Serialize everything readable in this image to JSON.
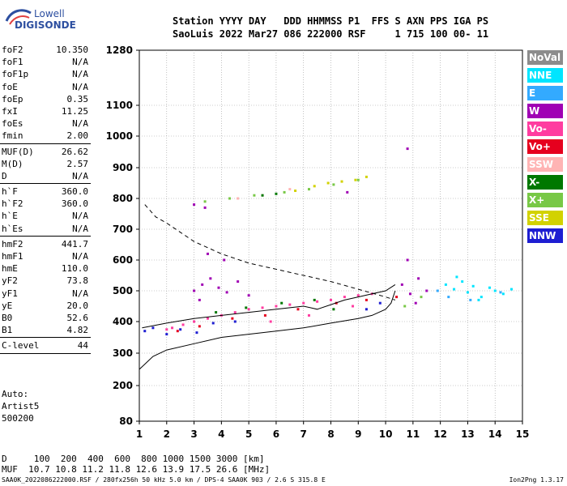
{
  "logo": {
    "line1": "Lowell",
    "line2": "DIGISONDE"
  },
  "header": {
    "line1": "Station YYYY DAY   DDD HHMMSS P1  FFS S AXN PPS IGA PS",
    "line2": "SaoLuis 2022 Mar27 086 222000 RSF     1 715 100 00- 11"
  },
  "params": [
    {
      "k": "foF2",
      "v": "10.350"
    },
    {
      "k": "foF1",
      "v": "N/A"
    },
    {
      "k": "foF1p",
      "v": "N/A"
    },
    {
      "k": "foE",
      "v": "N/A"
    },
    {
      "k": "foEp",
      "v": "0.35"
    },
    {
      "k": "fxI",
      "v": "11.25"
    },
    {
      "k": "foEs",
      "v": "N/A"
    },
    {
      "k": "fmin",
      "v": "2.00"
    },
    {
      "k": "MUF(D)",
      "v": "26.62"
    },
    {
      "k": "M(D)",
      "v": "2.57"
    },
    {
      "k": "D",
      "v": "N/A"
    },
    {
      "k": "h`F",
      "v": "360.0"
    },
    {
      "k": "h`F2",
      "v": "360.0"
    },
    {
      "k": "h`E",
      "v": "N/A"
    },
    {
      "k": "h`Es",
      "v": "N/A"
    },
    {
      "k": "hmF2",
      "v": "441.7"
    },
    {
      "k": "hmF1",
      "v": "N/A"
    },
    {
      "k": "hmE",
      "v": "110.0"
    },
    {
      "k": "yF2",
      "v": "73.8"
    },
    {
      "k": "yF1",
      "v": "N/A"
    },
    {
      "k": "yE",
      "v": "20.0"
    },
    {
      "k": "B0",
      "v": "52.6"
    },
    {
      "k": "B1",
      "v": "4.82"
    },
    {
      "k": "C-level",
      "v": "44"
    }
  ],
  "auto": {
    "line1": "Auto:",
    "line2": "Artist5",
    "line3": "500200"
  },
  "legend": [
    {
      "label": "NoVal",
      "color": "#8c8c8c"
    },
    {
      "label": "NNE",
      "color": "#00e5ff"
    },
    {
      "label": "E",
      "color": "#33aaff"
    },
    {
      "label": "W",
      "color": "#a000b4"
    },
    {
      "label": "Vo-",
      "color": "#ff3ca0"
    },
    {
      "label": "Vo+",
      "color": "#e6001e"
    },
    {
      "label": "SSW",
      "color": "#ffb4b4"
    },
    {
      "label": "X-",
      "color": "#007800"
    },
    {
      "label": "X+",
      "color": "#78c846"
    },
    {
      "label": "SSE",
      "color": "#d2d200"
    },
    {
      "label": "NNW",
      "color": "#1e1ed2"
    }
  ],
  "bottom": {
    "line1": "D     100  200  400  600  800 1000 1500 3000 [km]",
    "line2": "MUF  10.7 10.8 11.2 11.8 12.6 13.9 17.5 26.6 [MHz]"
  },
  "footer": "SAA0K_2022086222000.RSF / 280fx256h 50 kHz 5.0 km / DPS-4 SAA0K 903 / 2.6 S 315.8 E",
  "version": "Ion2Png 1.3.17",
  "chart_data": {
    "type": "scatter",
    "xlim": [
      1,
      15
    ],
    "x_ticks": [
      1,
      2,
      3,
      4,
      5,
      6,
      7,
      8,
      9,
      10,
      11,
      12,
      13,
      14,
      15
    ],
    "y_ticks": [
      80,
      200,
      300,
      400,
      500,
      600,
      700,
      800,
      900,
      1000,
      1100,
      1280
    ],
    "y_scale": "quasi-log",
    "grid": true,
    "legend_position": "right",
    "series": [
      {
        "name": "NoVal",
        "points": []
      },
      {
        "name": "NNE",
        "points": [
          [
            12.2,
            520
          ],
          [
            12.5,
            505
          ],
          [
            12.8,
            530
          ],
          [
            13.0,
            495
          ],
          [
            13.2,
            515
          ],
          [
            13.5,
            480
          ],
          [
            13.8,
            510
          ],
          [
            14.0,
            500
          ],
          [
            14.3,
            490
          ],
          [
            12.6,
            545
          ],
          [
            13.4,
            470
          ],
          [
            14.6,
            505
          ]
        ]
      },
      {
        "name": "E",
        "points": [
          [
            12.3,
            480
          ],
          [
            13.1,
            470
          ],
          [
            14.2,
            495
          ],
          [
            11.9,
            500
          ]
        ]
      },
      {
        "name": "W",
        "points": [
          [
            3.0,
            500
          ],
          [
            3.3,
            520
          ],
          [
            3.6,
            540
          ],
          [
            3.9,
            510
          ],
          [
            4.2,
            495
          ],
          [
            4.6,
            530
          ],
          [
            5.0,
            485
          ],
          [
            3.5,
            620
          ],
          [
            4.1,
            600
          ],
          [
            3.2,
            470
          ],
          [
            10.6,
            520
          ],
          [
            10.9,
            490
          ],
          [
            11.2,
            540
          ],
          [
            11.5,
            500
          ],
          [
            10.8,
            600
          ],
          [
            11.1,
            460
          ],
          [
            3.0,
            780
          ],
          [
            3.4,
            770
          ],
          [
            8.6,
            820
          ],
          [
            10.8,
            960
          ]
        ]
      },
      {
        "name": "Vo-",
        "points": [
          [
            2.2,
            380
          ],
          [
            2.6,
            390
          ],
          [
            3.0,
            400
          ],
          [
            3.5,
            410
          ],
          [
            4.0,
            420
          ],
          [
            4.5,
            430
          ],
          [
            5.0,
            440
          ],
          [
            5.5,
            445
          ],
          [
            6.0,
            450
          ],
          [
            6.5,
            455
          ],
          [
            7.0,
            460
          ],
          [
            7.5,
            465
          ],
          [
            8.0,
            470
          ],
          [
            8.5,
            480
          ],
          [
            9.0,
            485
          ],
          [
            9.5,
            490
          ],
          [
            2.0,
            375
          ],
          [
            5.8,
            400
          ],
          [
            7.2,
            420
          ],
          [
            8.8,
            450
          ]
        ]
      },
      {
        "name": "Vo+",
        "points": [
          [
            2.4,
            370
          ],
          [
            3.2,
            385
          ],
          [
            4.4,
            410
          ],
          [
            5.6,
            420
          ],
          [
            6.8,
            440
          ],
          [
            8.2,
            460
          ],
          [
            9.3,
            470
          ],
          [
            10.4,
            480
          ]
        ]
      },
      {
        "name": "SSW",
        "points": [
          [
            4.6,
            800
          ],
          [
            5.5,
            810
          ],
          [
            6.5,
            830
          ]
        ]
      },
      {
        "name": "X-",
        "points": [
          [
            3.8,
            430
          ],
          [
            4.9,
            445
          ],
          [
            6.2,
            460
          ],
          [
            7.4,
            470
          ],
          [
            8.1,
            440
          ],
          [
            5.5,
            810
          ],
          [
            6.0,
            815
          ]
        ]
      },
      {
        "name": "X+",
        "points": [
          [
            3.4,
            790
          ],
          [
            4.3,
            800
          ],
          [
            5.2,
            810
          ],
          [
            6.3,
            820
          ],
          [
            7.2,
            830
          ],
          [
            8.1,
            845
          ],
          [
            9.0,
            860
          ],
          [
            10.7,
            450
          ],
          [
            11.3,
            480
          ]
        ]
      },
      {
        "name": "SSE",
        "points": [
          [
            7.4,
            840
          ],
          [
            7.9,
            850
          ],
          [
            8.4,
            855
          ],
          [
            8.9,
            860
          ],
          [
            9.3,
            870
          ],
          [
            6.7,
            825
          ]
        ]
      },
      {
        "name": "NNW",
        "points": [
          [
            1.2,
            370
          ],
          [
            1.5,
            380
          ],
          [
            2.0,
            360
          ],
          [
            2.5,
            375
          ],
          [
            3.1,
            365
          ],
          [
            3.7,
            395
          ],
          [
            4.5,
            400
          ],
          [
            9.3,
            440
          ],
          [
            9.8,
            460
          ]
        ]
      }
    ],
    "curves": [
      {
        "name": "profile",
        "style": "solid",
        "points": [
          [
            1.0,
            250
          ],
          [
            1.5,
            290
          ],
          [
            2.0,
            310
          ],
          [
            3.0,
            330
          ],
          [
            4.0,
            350
          ],
          [
            5.0,
            360
          ],
          [
            6.0,
            370
          ],
          [
            7.0,
            380
          ],
          [
            8.0,
            395
          ],
          [
            9.0,
            410
          ],
          [
            9.5,
            420
          ],
          [
            10.0,
            440
          ],
          [
            10.2,
            460
          ],
          [
            10.35,
            500
          ]
        ]
      },
      {
        "name": "trace",
        "style": "solid",
        "points": [
          [
            1.1,
            380
          ],
          [
            2.0,
            395
          ],
          [
            3.0,
            410
          ],
          [
            4.0,
            420
          ],
          [
            5.0,
            430
          ],
          [
            6.0,
            440
          ],
          [
            7.0,
            450
          ],
          [
            7.5,
            440
          ],
          [
            8.0,
            455
          ],
          [
            8.5,
            470
          ],
          [
            9.0,
            480
          ],
          [
            9.5,
            490
          ],
          [
            10.0,
            500
          ],
          [
            10.35,
            520
          ]
        ]
      },
      {
        "name": "muf",
        "style": "dashed",
        "points": [
          [
            1.2,
            780
          ],
          [
            1.6,
            740
          ],
          [
            2.0,
            720
          ],
          [
            2.5,
            690
          ],
          [
            3.0,
            660
          ],
          [
            4.0,
            620
          ],
          [
            5.0,
            590
          ],
          [
            6.0,
            570
          ],
          [
            7.0,
            550
          ],
          [
            8.0,
            530
          ],
          [
            9.0,
            505
          ],
          [
            10.0,
            480
          ],
          [
            10.35,
            470
          ]
        ]
      }
    ]
  }
}
